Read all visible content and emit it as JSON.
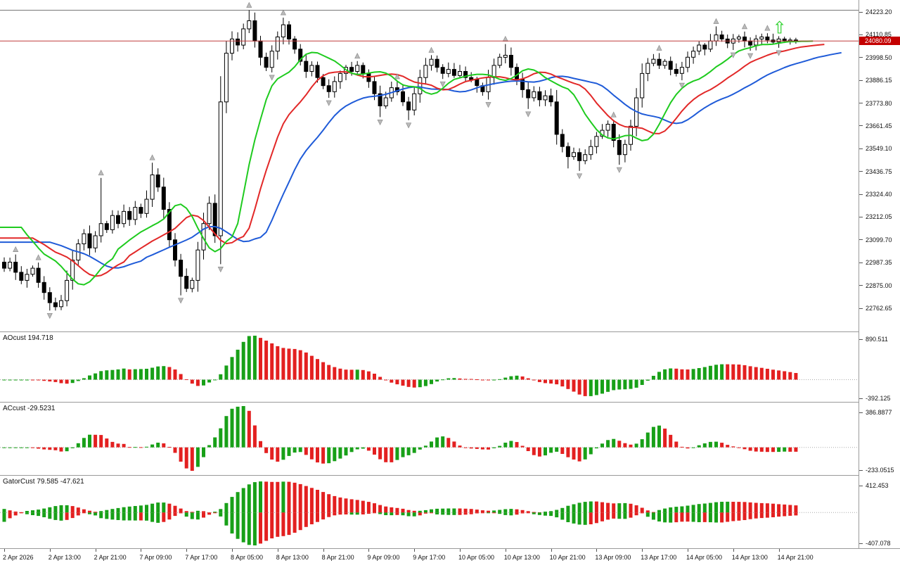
{
  "colors": {
    "background": "#ffffff",
    "panel_border": "#9a9a9a",
    "candle_outline": "#000000",
    "bull_body": "#ffffff",
    "bear_body": "#000000",
    "alligator_jaw": "#1f5bd8",
    "alligator_teeth": "#e22828",
    "alligator_lips": "#1fcb1f",
    "indicator_up": "#18a018",
    "indicator_down": "#e32020",
    "fractal": "#bababa",
    "price_line": "#c03b3b",
    "price_tag_bg": "#c40000",
    "price_tag_text": "#ffffff",
    "signal_arrow": "#2bd12b",
    "axis_text": "#111111"
  },
  "price_axis": {
    "labels": [
      "24223.20",
      "24110.85",
      "23998.50",
      "23886.15",
      "23773.80",
      "23661.45",
      "23549.10",
      "23436.75",
      "23324.40",
      "23212.05",
      "23099.70",
      "22987.35",
      "22875.00",
      "22762.65"
    ],
    "current_price": "24080.09"
  },
  "time_axis": {
    "labels": [
      "2 Apr 2026",
      "2 Apr 13:00",
      "2 Apr 21:00",
      "7 Apr 09:00",
      "7 Apr 17:00",
      "8 Apr 05:00",
      "8 Apr 13:00",
      "8 Apr 21:00",
      "9 Apr 09:00",
      "9 Apr 17:00",
      "10 Apr 05:00",
      "10 Apr 13:00",
      "10 Apr 21:00",
      "13 Apr 09:00",
      "13 Apr 17:00",
      "14 Apr 05:00",
      "14 Apr 13:00",
      "14 Apr 21:00"
    ]
  },
  "panels": [
    {
      "name": "AOcust",
      "title": "AOcust 194.718",
      "value_label": "194.718",
      "max_label": "890.511",
      "min_label": "-392.125",
      "max": 890.511,
      "min": -392.125
    },
    {
      "name": "ACcust",
      "title": "ACcust -29.5231",
      "value_label": "-29.5231",
      "max_label": "386.8877",
      "min_label": "-233.0515",
      "max": 386.8877,
      "min": -233.0515
    },
    {
      "name": "GatorCust",
      "title": "GatorCust 79.585 -47.621",
      "value_label": "79.585 -47.621",
      "max_label": "412.453",
      "min_label": "-407.078",
      "max": 412.453,
      "min": -407.078
    }
  ],
  "chart_data": {
    "type": "candlestick",
    "x_labels": [
      "2 Apr 2026",
      "2 Apr 13:00",
      "2 Apr 21:00",
      "7 Apr 09:00",
      "7 Apr 17:00",
      "8 Apr 05:00",
      "8 Apr 13:00",
      "8 Apr 21:00",
      "9 Apr 09:00",
      "9 Apr 17:00",
      "10 Apr 05:00",
      "10 Apr 13:00",
      "10 Apr 21:00",
      "13 Apr 09:00",
      "13 Apr 17:00",
      "14 Apr 05:00",
      "14 Apr 13:00",
      "14 Apr 21:00"
    ],
    "bars_per_x_label": 8,
    "price_axis_ticks": [
      24223.2,
      24110.85,
      23998.5,
      23886.15,
      23773.8,
      23661.45,
      23549.1,
      23436.75,
      23324.4,
      23212.05,
      23099.7,
      22987.35,
      22875.0,
      22762.65
    ],
    "current_price": 24080.09,
    "first_open": 22990,
    "closes": [
      22960,
      22990,
      22940,
      22900,
      22930,
      22960,
      22890,
      22840,
      22790,
      22770,
      22800,
      22900,
      23000,
      23080,
      23130,
      23060,
      23120,
      23180,
      23150,
      23220,
      23180,
      23240,
      23200,
      23260,
      23230,
      23300,
      23420,
      23360,
      23250,
      23100,
      23000,
      22920,
      22860,
      22900,
      23050,
      23180,
      23280,
      23120,
      23780,
      24020,
      24090,
      24060,
      24140,
      24180,
      24080,
      24000,
      23950,
      24030,
      24100,
      24160,
      24090,
      24040,
      23980,
      23930,
      23960,
      23900,
      23860,
      23830,
      23880,
      23920,
      23950,
      23930,
      23960,
      23920,
      23880,
      23820,
      23760,
      23800,
      23850,
      23830,
      23780,
      23740,
      23820,
      23900,
      23960,
      23990,
      23950,
      23920,
      23940,
      23910,
      23930,
      23900,
      23890,
      23860,
      23830,
      23900,
      23960,
      24000,
      24010,
      23950,
      23890,
      23840,
      23800,
      23830,
      23790,
      23810,
      23780,
      23620,
      23560,
      23510,
      23530,
      23490,
      23520,
      23560,
      23610,
      23640,
      23670,
      23590,
      23520,
      23570,
      23660,
      23800,
      23920,
      23970,
      23990,
      23960,
      23980,
      23940,
      23920,
      23950,
      24000,
      24030,
      24060,
      24040,
      24080,
      24110,
      24090,
      24070,
      24090,
      24100,
      24080,
      24060,
      24090,
      24100,
      24085,
      24075,
      24090,
      24080,
      24085,
      24080.09
    ],
    "wick_overrides": {
      "9": [
        null,
        22752
      ],
      "17": [
        23405,
        null
      ],
      "26": [
        23480,
        null
      ],
      "31": [
        null,
        22826
      ],
      "38": [
        23830,
        23090
      ],
      "43": [
        24232,
        null
      ],
      "49": [
        24195,
        null
      ],
      "57": [
        null,
        23800
      ],
      "66": [
        null,
        23705
      ],
      "71": [
        null,
        23690
      ],
      "88": [
        24065,
        null
      ],
      "92": [
        null,
        23745
      ],
      "99": [
        null,
        23452
      ],
      "101": [
        null,
        23440
      ],
      "108": [
        null,
        23470
      ],
      "125": [
        24152,
        null
      ]
    },
    "overlays": {
      "alligator": {
        "jaw": {
          "period": 13,
          "shift": 8,
          "color": "#1f5bd8"
        },
        "teeth": {
          "period": 8,
          "shift": 5,
          "color": "#e22828"
        },
        "lips": {
          "period": 5,
          "shift": 3,
          "color": "#1fcb1f"
        }
      },
      "fractals": true,
      "signal_arrow_bar_index": 136
    },
    "indicator_panels": [
      {
        "name": "AOcust",
        "type": "awesome-oscillator",
        "display_value": 194.718,
        "scale_max": 890.511,
        "scale_min": -392.125
      },
      {
        "name": "ACcust",
        "type": "accelerator-oscillator",
        "display_value": -29.5231,
        "scale_max": 386.8877,
        "scale_min": -233.0515
      },
      {
        "name": "GatorCust",
        "type": "gator-oscillator",
        "display_values": [
          79.585,
          -47.621
        ],
        "scale_max": 412.453,
        "scale_min": -407.078
      }
    ]
  }
}
